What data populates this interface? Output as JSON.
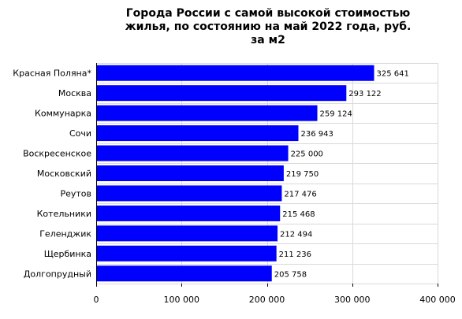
{
  "chart_data": {
    "type": "bar",
    "orientation": "horizontal",
    "title_lines": [
      "Города России с самой высокой стоимостью",
      "жилья, по состоянию на май 2022 года, руб.",
      "за м2"
    ],
    "categories": [
      "Красная Поляна*",
      "Москва",
      "Коммунарка",
      "Сочи",
      "Воскресенское",
      "Московский",
      "Реутов",
      "Котельники",
      "Геленджик",
      "Щербинка",
      "Долгопрудный"
    ],
    "values": [
      325641,
      293122,
      259124,
      236943,
      225000,
      219750,
      217476,
      215468,
      212494,
      211236,
      205758
    ],
    "value_labels": [
      "325 641",
      "293 122",
      "259 124",
      "236 943",
      "225 000",
      "219 750",
      "217 476",
      "215 468",
      "212 494",
      "211 236",
      "205 758"
    ],
    "xlim": [
      0,
      400000
    ],
    "x_ticks": [
      0,
      100000,
      200000,
      300000,
      400000
    ],
    "x_tick_labels": [
      "0",
      "100 000",
      "200 000",
      "300 000",
      "400 000"
    ],
    "grid": true,
    "bar_color": "#0000ff",
    "grid_color": "#d9d9d9"
  }
}
